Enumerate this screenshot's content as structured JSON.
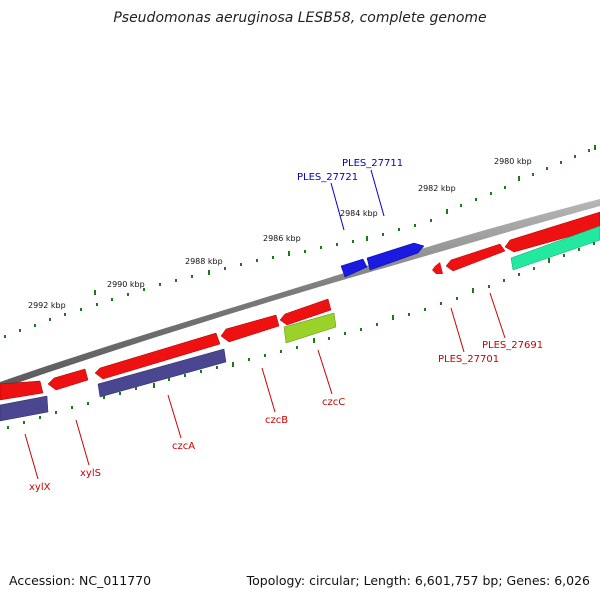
{
  "title": "Pseudomonas aeruginosa LESB58, complete genome",
  "footer": {
    "accession": "Accession: NC_011770",
    "summary": "Topology: circular; Length: 6,601,757 bp; Genes: 6,026"
  },
  "scale_labels": [
    "2980 kbp",
    "2982 kbp",
    "2984 kbp",
    "2986 kbp",
    "2988 kbp",
    "2990 kbp",
    "2992 kbp"
  ],
  "gene_labels": [
    {
      "text": "PLES_27711",
      "color": "#0000cc"
    },
    {
      "text": "PLES_27721",
      "color": "#0000cc"
    },
    {
      "text": "PLES_27691",
      "color": "#cc0000"
    },
    {
      "text": "PLES_27701",
      "color": "#cc0000"
    },
    {
      "text": "czcC",
      "color": "#cc0000"
    },
    {
      "text": "czcB",
      "color": "#cc0000"
    },
    {
      "text": "czcA",
      "color": "#cc0000"
    },
    {
      "text": "xylS",
      "color": "#cc0000"
    },
    {
      "text": "xylX",
      "color": "#cc0000"
    }
  ],
  "colors": {
    "backbone": "#808080",
    "forward_gene": "#0000ff",
    "reverse_gene": "#ff0000",
    "tick": "#1a7a1a",
    "czcA_feature": "#4a4690",
    "czcC_feature": "#a8e830",
    "teal_feature": "#22e8a0"
  }
}
